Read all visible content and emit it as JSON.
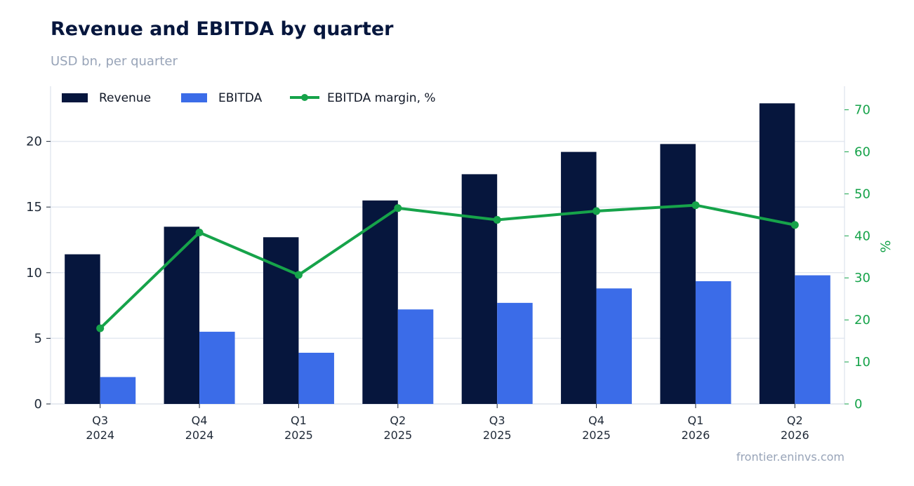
{
  "chart_data": {
    "type": "bar",
    "title": "Revenue and EBITDA by quarter",
    "subtitle": "USD bn, per quarter",
    "categories": [
      [
        "Q3",
        "2024"
      ],
      [
        "Q4",
        "2024"
      ],
      [
        "Q1",
        "2025"
      ],
      [
        "Q2",
        "2025"
      ],
      [
        "Q3",
        "2025"
      ],
      [
        "Q4",
        "2025"
      ],
      [
        "Q1",
        "2026"
      ],
      [
        "Q2",
        "2026"
      ]
    ],
    "series": [
      {
        "name": "Revenue",
        "type": "bar",
        "axis": "left",
        "color": "#06163d",
        "values": [
          11.4,
          13.5,
          12.7,
          15.5,
          17.5,
          19.2,
          19.8,
          22.9
        ]
      },
      {
        "name": "EBITDA",
        "type": "bar",
        "axis": "left",
        "color": "#3b6ce8",
        "values": [
          2.05,
          5.5,
          3.9,
          7.2,
          7.7,
          8.8,
          9.35,
          9.8
        ]
      },
      {
        "name": "EBITDA margin, %",
        "type": "line",
        "axis": "right",
        "color": "#16a34a",
        "values": [
          18.0,
          40.8,
          30.7,
          46.6,
          43.8,
          45.9,
          47.3,
          42.6
        ]
      }
    ],
    "y_left": {
      "label": "",
      "ylim": [
        0,
        24.2
      ],
      "ticks": [
        0,
        5,
        10,
        15,
        20
      ]
    },
    "y_right": {
      "label": "%",
      "ylim": [
        0,
        75.6
      ],
      "ticks": [
        0,
        10,
        20,
        30,
        40,
        50,
        60,
        70
      ],
      "color": "#16a34a"
    },
    "grid": true,
    "legend": "top-left",
    "xlabel": ""
  },
  "watermark": "frontier.eninvs.com"
}
